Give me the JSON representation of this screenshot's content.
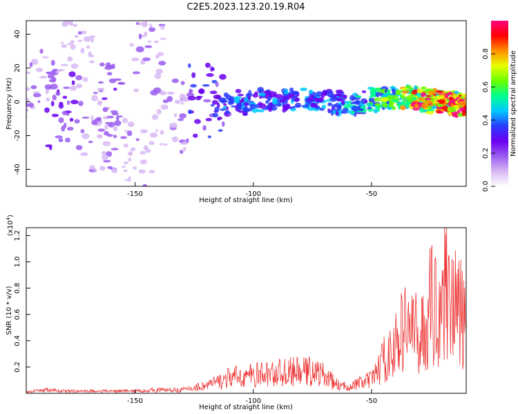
{
  "title": "C2E5.2023.123.20.19.R04",
  "chart_data": [
    {
      "type": "heatmap",
      "xlabel": "Height of straight line (km)",
      "ylabel": "Frequency (Hz)",
      "xlim": [
        -196,
        -10
      ],
      "ylim": [
        -50,
        48
      ],
      "xticks": [
        -150,
        -100,
        -50
      ],
      "xtick_labels": [
        "-150",
        "-100",
        "-50"
      ],
      "yticks": [
        40,
        20,
        0,
        -20,
        -40
      ],
      "ytick_labels": [
        "40",
        "20",
        "0",
        "-20",
        "-40"
      ],
      "colorbar": {
        "label": "Normalized spectral amplitude",
        "range": [
          0,
          1
        ],
        "ticks": [
          0,
          0.2,
          0.4,
          0.6,
          0.8
        ],
        "tick_labels": [
          "0.0",
          "0.2",
          "0.4",
          "0.6",
          "0.8"
        ],
        "colormap": [
          "#ffffff",
          "#d8b8f4",
          "#9a5cf0",
          "#6a00f0",
          "#2a3cff",
          "#00c8ff",
          "#00ff90",
          "#6aff00",
          "#e8ff00",
          "#ff9000",
          "#ff0000",
          "#ff0080"
        ]
      },
      "blobs": [
        {
          "x": -190,
          "y": 10,
          "amp": 0.15
        },
        {
          "x": -180,
          "y": -5,
          "amp": 0.25
        },
        {
          "x": -175,
          "y": 30,
          "amp": 0.12
        },
        {
          "x": -165,
          "y": -20,
          "amp": 0.14
        },
        {
          "x": -160,
          "y": 0,
          "amp": 0.2
        },
        {
          "x": -150,
          "y": -35,
          "amp": 0.12
        },
        {
          "x": -145,
          "y": 25,
          "amp": 0.14
        },
        {
          "x": -135,
          "y": -8,
          "amp": 0.15
        },
        {
          "x": -120,
          "y": 0,
          "amp": 0.3
        },
        {
          "x": -110,
          "y": -2,
          "amp": 0.35
        },
        {
          "x": -100,
          "y": 1,
          "amp": 0.38
        },
        {
          "x": -90,
          "y": 0,
          "amp": 0.4
        },
        {
          "x": -80,
          "y": 2,
          "amp": 0.42
        },
        {
          "x": -70,
          "y": 0,
          "amp": 0.38
        },
        {
          "x": -60,
          "y": -2,
          "amp": 0.45
        },
        {
          "x": -50,
          "y": 0,
          "amp": 0.5
        },
        {
          "x": -45,
          "y": 2,
          "amp": 0.55
        },
        {
          "x": -38,
          "y": 3,
          "amp": 0.6
        },
        {
          "x": -30,
          "y": 2,
          "amp": 0.7
        },
        {
          "x": -25,
          "y": 1,
          "amp": 0.95
        },
        {
          "x": -20,
          "y": 0,
          "amp": 0.75
        },
        {
          "x": -15,
          "y": -1,
          "amp": 0.9
        },
        {
          "x": -10,
          "y": -2,
          "amp": 1.0
        }
      ]
    },
    {
      "type": "line",
      "xlabel": "Height of straight line (km)",
      "ylabel": "SNR (10 * v/v)",
      "scale_label": "(x10",
      "scale_exponent": "4",
      "scale_close": ")",
      "xlim": [
        -196,
        -10
      ],
      "ylim": [
        0,
        1.26
      ],
      "xticks": [
        -150,
        -100,
        -50
      ],
      "xtick_labels": [
        "-150",
        "-100",
        "-50"
      ],
      "yticks": [
        0.2,
        0.4,
        0.6,
        0.8,
        1.0,
        1.2
      ],
      "ytick_labels": [
        "0.2",
        "0.4",
        "0.6",
        "0.8",
        "1.0",
        "1.2"
      ],
      "color": "#ee3333",
      "series": [
        {
          "x": [
            -196,
            -192,
            -188,
            -180,
            -170,
            -160,
            -150,
            -140,
            -130,
            -125,
            -120,
            -115,
            -110,
            -105,
            -100,
            -95,
            -90,
            -85,
            -80,
            -75,
            -70,
            -65,
            -62,
            -58,
            -55,
            -50,
            -47,
            -45,
            -42,
            -38,
            -35,
            -32,
            -30,
            -27,
            -25,
            -22,
            -20,
            -17,
            -15,
            -12,
            -10
          ],
          "y": [
            0.01,
            0.02,
            0.03,
            0.02,
            0.02,
            0.02,
            0.02,
            0.03,
            0.03,
            0.05,
            0.07,
            0.1,
            0.14,
            0.15,
            0.16,
            0.17,
            0.18,
            0.19,
            0.19,
            0.2,
            0.16,
            0.08,
            0.06,
            0.07,
            0.09,
            0.12,
            0.22,
            0.3,
            0.35,
            0.5,
            0.65,
            0.55,
            0.5,
            0.6,
            0.8,
            0.75,
            0.9,
            1.0,
            0.8,
            0.7,
            0.55
          ]
        }
      ]
    }
  ]
}
